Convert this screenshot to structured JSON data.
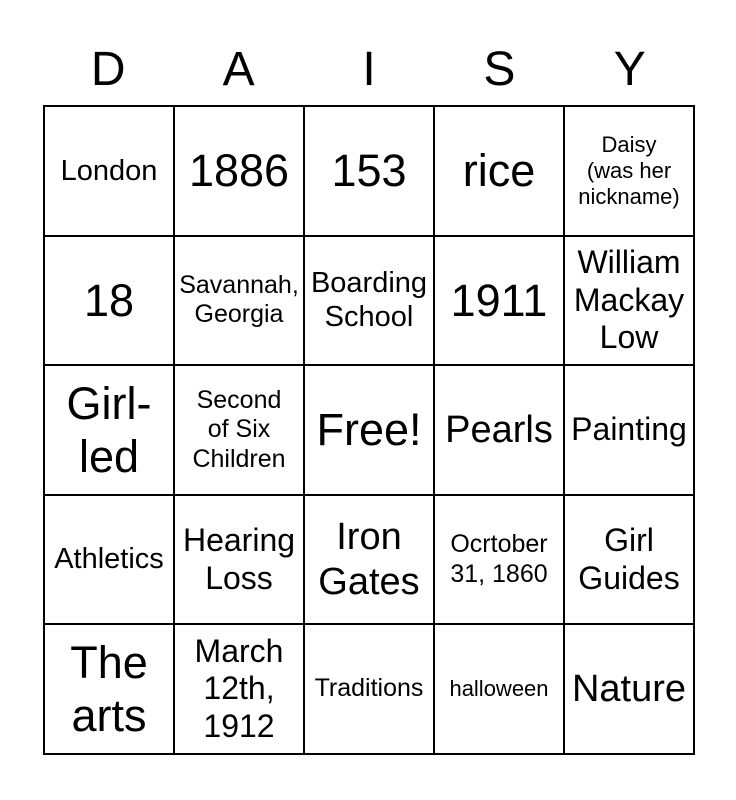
{
  "header": {
    "letters": [
      "D",
      "A",
      "I",
      "S",
      "Y"
    ]
  },
  "grid": {
    "rows": [
      [
        "London",
        "1886",
        "153",
        "rice",
        "Daisy\n(was her\nnickname)"
      ],
      [
        "18",
        "Savannah,\nGeorgia",
        "Boarding\nSchool",
        "1911",
        "William\nMackay\nLow"
      ],
      [
        "Girl-\nled",
        "Second\nof Six\nChildren",
        "Free!",
        "Pearls",
        "Painting"
      ],
      [
        "Athletics",
        "Hearing\nLoss",
        "Iron\nGates",
        "Ocrtober\n31, 1860",
        "Girl\nGuides"
      ],
      [
        "The\narts",
        "March\n12th,\n1912",
        "Traditions",
        "halloween",
        "Nature"
      ]
    ]
  },
  "colors": {
    "background": "#ffffff",
    "grid_lines": "#000000",
    "text": "#000000"
  }
}
